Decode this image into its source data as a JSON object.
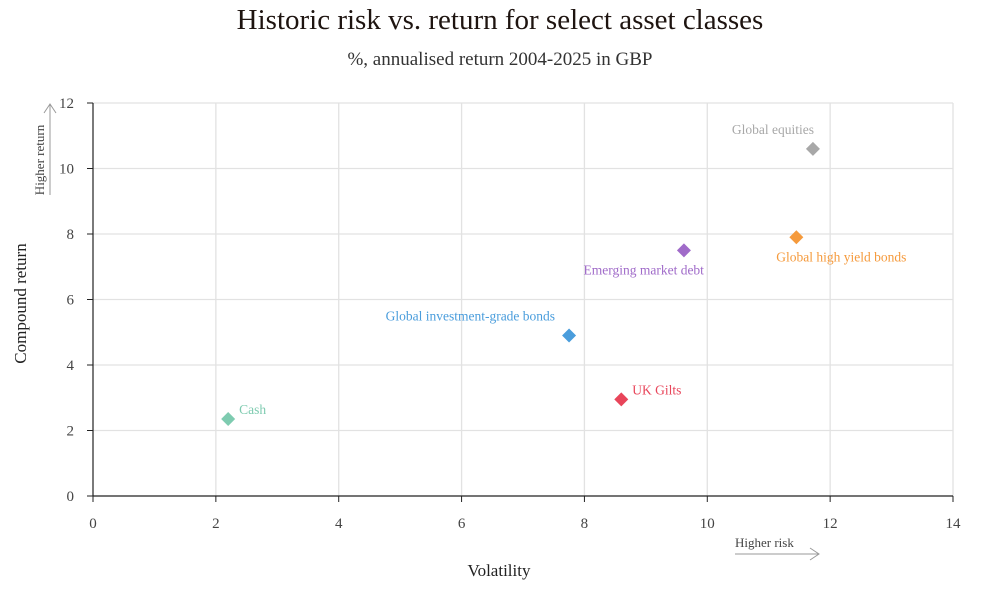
{
  "chart_data": {
    "type": "scatter",
    "title": "Historic risk vs. return for select asset classes",
    "subtitle": "%, annualised return 2004-2025 in GBP",
    "xlabel": "Volatility",
    "ylabel": "Compound return",
    "xlim": [
      0,
      14
    ],
    "ylim": [
      0,
      12
    ],
    "xticks": [
      0,
      2,
      4,
      6,
      8,
      10,
      12,
      14
    ],
    "yticks": [
      0,
      2,
      4,
      6,
      8,
      10,
      12
    ],
    "grid": true,
    "x_hint": "Higher risk",
    "y_hint": "Higher return",
    "points": [
      {
        "label": "Cash",
        "x": 2.2,
        "y": 2.35,
        "color": "#7ecbb0",
        "label_pos": "right"
      },
      {
        "label": "Global investment-grade bonds",
        "x": 7.75,
        "y": 4.9,
        "color": "#4a9ddc",
        "label_pos": "above-left"
      },
      {
        "label": "UK Gilts",
        "x": 8.6,
        "y": 2.95,
        "color": "#e8455a",
        "label_pos": "right"
      },
      {
        "label": "Emerging market debt",
        "x": 9.62,
        "y": 7.5,
        "color": "#a06bc9",
        "label_pos": "below-left"
      },
      {
        "label": "Global high yield bonds",
        "x": 11.45,
        "y": 7.9,
        "color": "#f59a3c",
        "label_pos": "below"
      },
      {
        "label": "Global equities",
        "x": 11.72,
        "y": 10.6,
        "color": "#a8a8a8",
        "label_pos": "above-left"
      }
    ]
  }
}
